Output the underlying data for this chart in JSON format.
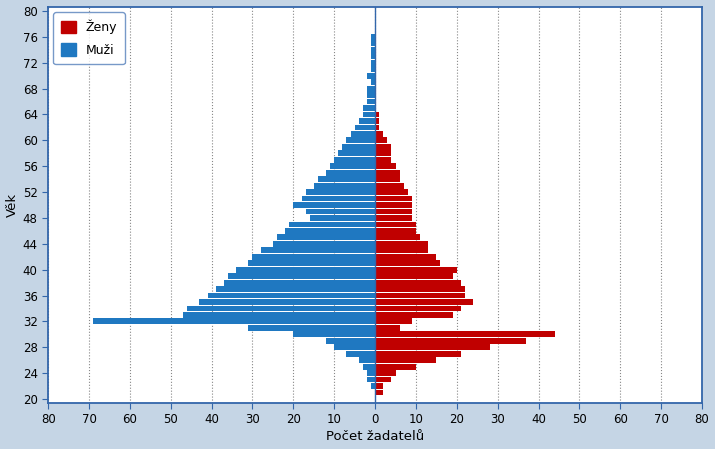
{
  "ages": [
    80,
    79,
    78,
    77,
    76,
    75,
    74,
    73,
    72,
    71,
    70,
    69,
    68,
    67,
    66,
    65,
    64,
    63,
    62,
    61,
    60,
    59,
    58,
    57,
    56,
    55,
    54,
    53,
    52,
    51,
    50,
    49,
    48,
    47,
    46,
    45,
    44,
    43,
    42,
    41,
    40,
    39,
    38,
    37,
    36,
    35,
    34,
    33,
    32,
    31,
    30,
    29,
    28,
    27,
    26,
    25,
    24,
    23,
    22,
    21,
    20
  ],
  "muzi": [
    0,
    0,
    0,
    0,
    1,
    1,
    1,
    1,
    1,
    1,
    2,
    1,
    2,
    2,
    2,
    3,
    3,
    4,
    5,
    6,
    7,
    8,
    9,
    10,
    11,
    12,
    14,
    15,
    17,
    18,
    20,
    17,
    16,
    21,
    22,
    24,
    25,
    28,
    30,
    31,
    34,
    36,
    37,
    39,
    41,
    43,
    46,
    47,
    69,
    31,
    20,
    12,
    10,
    7,
    4,
    3,
    2,
    2,
    1,
    0,
    0
  ],
  "zeny": [
    0,
    0,
    0,
    0,
    0,
    0,
    0,
    0,
    0,
    0,
    0,
    0,
    0,
    0,
    0,
    0,
    1,
    1,
    1,
    2,
    3,
    4,
    4,
    4,
    5,
    6,
    6,
    7,
    8,
    9,
    9,
    9,
    9,
    10,
    10,
    11,
    13,
    13,
    15,
    16,
    20,
    19,
    21,
    22,
    22,
    24,
    21,
    19,
    9,
    6,
    44,
    37,
    28,
    21,
    15,
    10,
    5,
    4,
    2,
    2,
    0
  ],
  "xlabel": "Počet žadatelů",
  "ylabel": "Věk",
  "legend_zeny": "Ženy",
  "legend_muzi": "Muži",
  "color_zeny": "#C00000",
  "color_muzi": "#1F78C1",
  "xlim": 80,
  "ylim_min": 20,
  "ylim_max": 80,
  "background_outer": "#C5D5E5",
  "background_inner": "#FFFFFF",
  "xticks": [
    -80,
    -70,
    -60,
    -50,
    -40,
    -30,
    -20,
    -10,
    0,
    10,
    20,
    30,
    40,
    50,
    60,
    70,
    80
  ],
  "yticks": [
    20,
    24,
    28,
    32,
    36,
    40,
    44,
    48,
    52,
    56,
    60,
    64,
    68,
    72,
    76,
    80
  ]
}
